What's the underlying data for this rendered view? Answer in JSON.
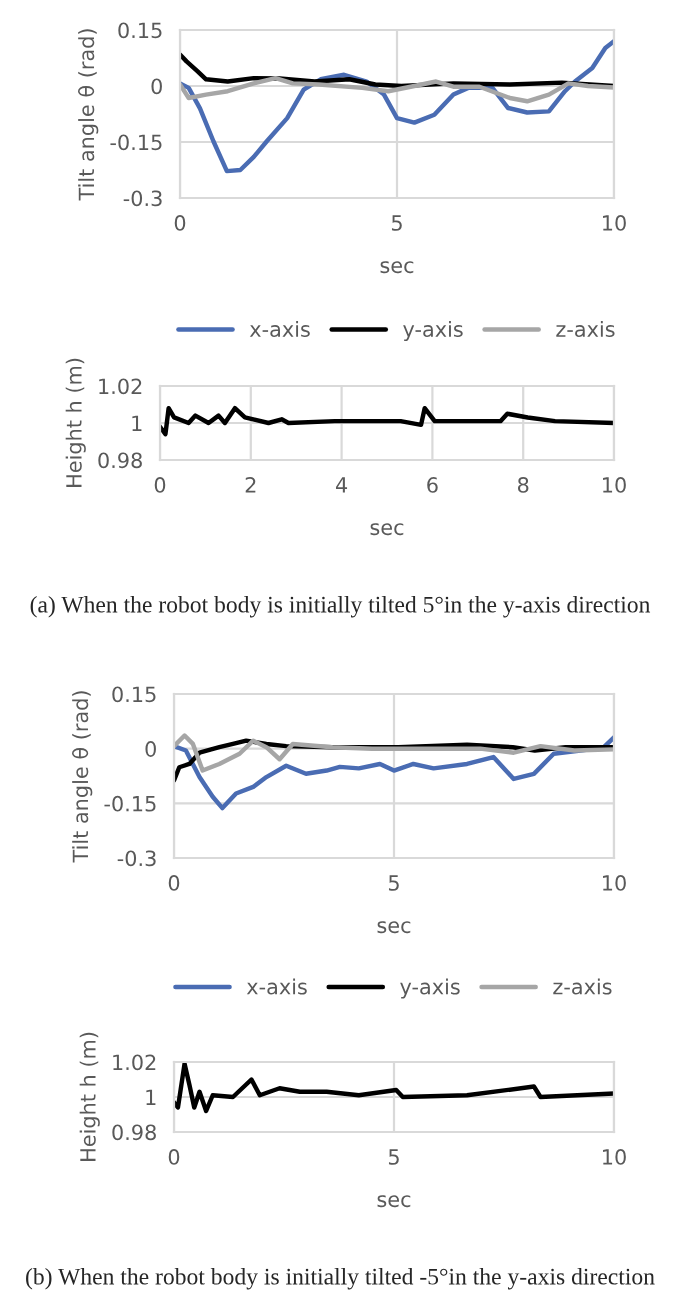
{
  "chart_data": [
    {
      "type": "line",
      "xlabel": "sec",
      "ylabel": "Tilt angle θ (rad)",
      "xlim": [
        0,
        10
      ],
      "xticks": [
        0,
        5,
        10
      ],
      "ylim": [
        -0.3,
        0.15
      ],
      "yticks": [
        -0.3,
        -0.15,
        0,
        0.15
      ],
      "grid": true,
      "legend": "bottom",
      "series": [
        {
          "name": "x-axis",
          "color": "#4a6cb3",
          "x": [
            0,
            0.2,
            0.46,
            0.77,
            1.08,
            1.39,
            1.7,
            2.0,
            2.47,
            2.85,
            3.24,
            3.78,
            4.3,
            4.7,
            5.0,
            5.4,
            5.86,
            6.3,
            6.64,
            7.2,
            7.56,
            8.0,
            8.5,
            8.87,
            9.1,
            9.5,
            9.8,
            10
          ],
          "values": [
            0.007,
            -0.005,
            -0.06,
            -0.148,
            -0.228,
            -0.225,
            -0.19,
            -0.148,
            -0.086,
            -0.01,
            0.018,
            0.03,
            0.012,
            -0.023,
            -0.086,
            -0.098,
            -0.077,
            -0.023,
            -0.005,
            -0.005,
            -0.059,
            -0.071,
            -0.068,
            -0.014,
            0.012,
            0.048,
            0.102,
            0.12
          ]
        },
        {
          "name": "y-axis",
          "color": "#000000",
          "x": [
            0,
            0.15,
            0.4,
            0.6,
            1.1,
            1.7,
            2.3,
            3.1,
            3.9,
            4.5,
            5.1,
            6.3,
            7.6,
            8.8,
            10
          ],
          "values": [
            0.084,
            0.066,
            0.04,
            0.018,
            0.012,
            0.021,
            0.02,
            0.012,
            0.018,
            0.004,
            0,
            0.007,
            0.004,
            0.009,
            0
          ]
        },
        {
          "name": "z-axis",
          "color": "#a6a6a6",
          "x": [
            0,
            0.2,
            0.6,
            1.1,
            1.7,
            2.2,
            2.6,
            3.2,
            4.2,
            4.8,
            5.4,
            5.9,
            6.3,
            6.9,
            7.6,
            8.0,
            8.5,
            8.95,
            9.4,
            10
          ],
          "values": [
            0.004,
            -0.032,
            -0.023,
            -0.014,
            0.007,
            0.021,
            0.007,
            0.004,
            -0.005,
            -0.014,
            0,
            0.012,
            -0.002,
            -0.002,
            -0.032,
            -0.041,
            -0.023,
            0.007,
            0,
            -0.004
          ]
        }
      ]
    },
    {
      "type": "line",
      "xlabel": "sec",
      "ylabel": "Height h (m)",
      "xlim": [
        0,
        10
      ],
      "xticks": [
        0,
        2,
        4,
        6,
        8,
        10
      ],
      "ylim": [
        0.98,
        1.02
      ],
      "yticks": [
        0.98,
        1,
        1.02
      ],
      "grid": true,
      "annotations": [
        "(a) When the robot body is initially tilted 5°in the y-axis direction"
      ],
      "series": [
        {
          "color": "#000000",
          "x": [
            0,
            0.12,
            0.19,
            0.31,
            0.63,
            0.78,
            1.07,
            1.29,
            1.43,
            1.65,
            1.87,
            2.39,
            2.68,
            2.83,
            3.85,
            5.3,
            5.75,
            5.83,
            6.05,
            7.5,
            7.65,
            8.1,
            8.7,
            10
          ],
          "values": [
            0.998,
            0.994,
            1.008,
            1.003,
            1.0,
            1.004,
            1.0,
            1.004,
            1.0,
            1.008,
            1.003,
            1.0,
            1.002,
            1.0,
            1.001,
            1.001,
            0.999,
            1.008,
            1.001,
            1.001,
            1.005,
            1.003,
            1.001,
            1.0
          ]
        }
      ]
    },
    {
      "type": "line",
      "xlabel": "sec",
      "ylabel": "Tilt angle θ (rad)",
      "xlim": [
        0,
        10
      ],
      "xticks": [
        0,
        5,
        10
      ],
      "ylim": [
        -0.3,
        0.15
      ],
      "yticks": [
        -0.3,
        -0.15,
        0,
        0.15
      ],
      "grid": true,
      "legend": "bottom",
      "series": [
        {
          "name": "x-axis",
          "color": "#4a6cb3",
          "x": [
            0,
            0.27,
            0.58,
            0.88,
            1.1,
            1.41,
            1.8,
            2.1,
            2.55,
            3.0,
            3.47,
            3.77,
            4.2,
            4.68,
            5.0,
            5.44,
            5.9,
            6.66,
            7.26,
            7.72,
            8.18,
            8.63,
            9.24,
            9.77,
            10
          ],
          "values": [
            0.007,
            -0.005,
            -0.078,
            -0.132,
            -0.163,
            -0.123,
            -0.105,
            -0.078,
            -0.047,
            -0.069,
            -0.06,
            -0.05,
            -0.054,
            -0.042,
            -0.06,
            -0.042,
            -0.054,
            -0.042,
            -0.023,
            -0.083,
            -0.069,
            -0.014,
            -0.005,
            0.004,
            0.031
          ]
        },
        {
          "name": "y-axis",
          "color": "#000000",
          "x": [
            0,
            0.12,
            0.35,
            0.58,
            1.03,
            1.34,
            1.64,
            2.1,
            2.55,
            3.6,
            5.1,
            6.66,
            7.7,
            8.2,
            8.9,
            10
          ],
          "values": [
            -0.087,
            -0.051,
            -0.042,
            -0.011,
            0.004,
            0.013,
            0.022,
            0.013,
            0.007,
            0.004,
            0.004,
            0.011,
            0.004,
            -0.005,
            0.004,
            0.004
          ]
        },
        {
          "name": "z-axis",
          "color": "#a6a6a6",
          "x": [
            0,
            0.24,
            0.43,
            0.65,
            1.03,
            1.49,
            1.8,
            2.1,
            2.4,
            2.7,
            3.6,
            4.5,
            5.73,
            6.96,
            7.72,
            8.33,
            9.1,
            10
          ],
          "values": [
            0.007,
            0.036,
            0.013,
            -0.06,
            -0.042,
            -0.014,
            0.022,
            0.004,
            -0.029,
            0.013,
            0.004,
            0,
            0,
            0,
            -0.011,
            0.007,
            -0.005,
            -0.002
          ]
        }
      ]
    },
    {
      "type": "line",
      "xlabel": "sec",
      "ylabel": "Height h (m)",
      "xlim": [
        0,
        10
      ],
      "xticks": [
        0,
        5,
        10
      ],
      "ylim": [
        0.98,
        1.02
      ],
      "yticks": [
        0.98,
        1,
        1.02
      ],
      "grid": true,
      "annotations": [
        "(b) When the robot body is initially tilted -5°in the y-axis direction"
      ],
      "series": [
        {
          "color": "#000000",
          "x": [
            0,
            0.09,
            0.24,
            0.35,
            0.46,
            0.58,
            0.73,
            0.88,
            1.34,
            1.76,
            1.95,
            2.4,
            2.86,
            3.47,
            4.2,
            5.05,
            5.2,
            6.66,
            8.18,
            8.33,
            10
          ],
          "values": [
            0.997,
            0.994,
            1.019,
            1.007,
            0.994,
            1.003,
            0.992,
            1.001,
            1.0,
            1.01,
            1.001,
            1.005,
            1.003,
            1.003,
            1.001,
            1.004,
            1.0,
            1.001,
            1.006,
            1.0,
            1.002
          ]
        }
      ]
    }
  ]
}
